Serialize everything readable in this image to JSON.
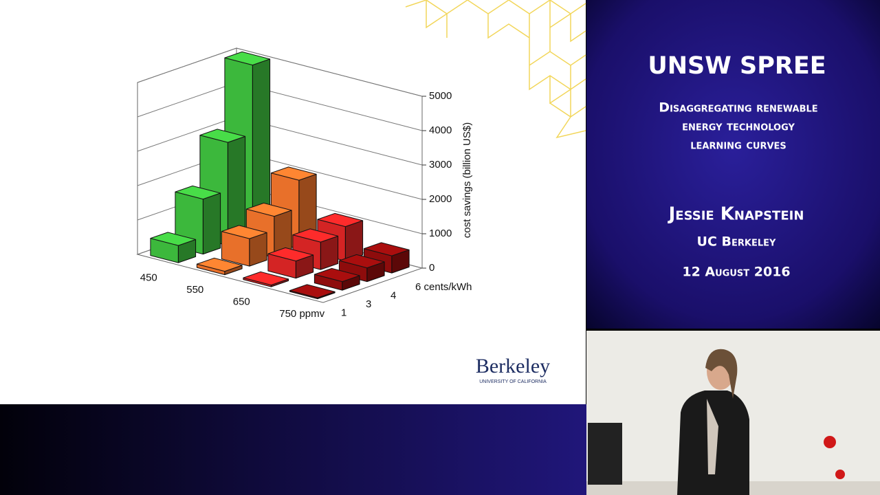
{
  "chart_data": {
    "type": "bar3d",
    "y_label": "cost savings (billion US$)",
    "categories": [
      "1",
      "3",
      "4",
      "6 cents/kWh"
    ],
    "series": [
      {
        "name": "450",
        "color": "#3cb83c",
        "values": [
          500,
          1600,
          3000,
          5000
        ]
      },
      {
        "name": "550",
        "color": "#e8702a",
        "values": [
          100,
          800,
          1200,
          2000
        ]
      },
      {
        "name": "650",
        "color": "#d42424",
        "values": [
          50,
          500,
          800,
          1000
        ]
      },
      {
        "name": "750 ppmv",
        "color": "#8e0c0c",
        "values": [
          30,
          250,
          400,
          500
        ]
      }
    ],
    "ylim": [
      0,
      5000
    ],
    "yticks": [
      0,
      1000,
      2000,
      3000,
      4000,
      5000
    ],
    "grid": true
  },
  "panel": {
    "title": "UNSW SPREE",
    "subtitle": [
      "Disaggregating renewable",
      "energy technology",
      "learning curves"
    ],
    "speaker": "Jessie Knapstein",
    "affiliation": "UC Berkeley",
    "date": "12 August 2016"
  },
  "logo": {
    "name": "Berkeley",
    "sub": "UNIVERSITY OF CALIFORNIA"
  }
}
